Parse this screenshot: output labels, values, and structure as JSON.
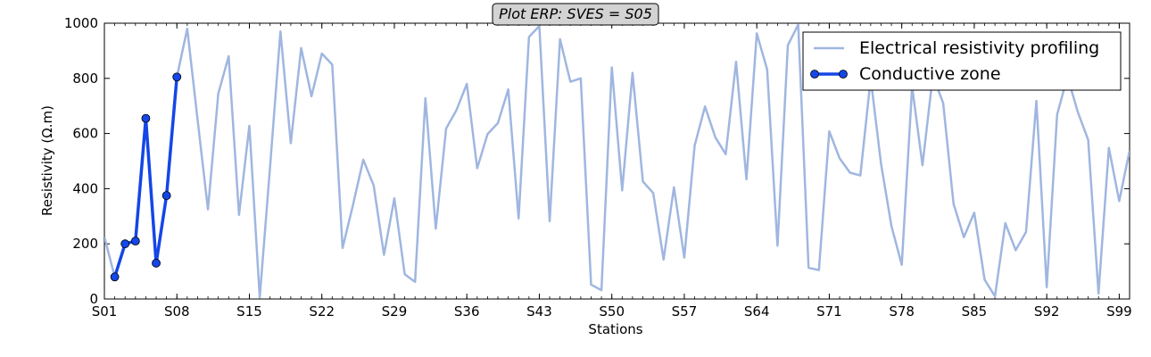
{
  "chart_data": {
    "type": "line",
    "title": "Plot ERP: SVES = S05",
    "xlabel": "Stations",
    "ylabel": "Resistivity (Ω.m)",
    "ylim": [
      0,
      1000
    ],
    "yticks": [
      0,
      200,
      400,
      600,
      800,
      1000
    ],
    "x_tick_labels": [
      "S01",
      "S08",
      "S15",
      "S22",
      "S29",
      "S36",
      "S43",
      "S50",
      "S57",
      "S64",
      "S71",
      "S78",
      "S85",
      "S92",
      "S99"
    ],
    "x_tick_stations": [
      1,
      8,
      15,
      22,
      29,
      36,
      43,
      50,
      57,
      64,
      71,
      78,
      85,
      92,
      99
    ],
    "grid": false,
    "legend_position": "top-right",
    "colors": {
      "erp": "#a0b6e0",
      "conductive": "#1446e8",
      "title_box": "#d3d3d3"
    },
    "series": [
      {
        "name": "Electrical resistivity profiling",
        "start_station": 1,
        "values": [
          225,
          80,
          200,
          210,
          655,
          130,
          375,
          805,
          980,
          650,
          325,
          745,
          880,
          305,
          628,
          5,
          480,
          970,
          565,
          910,
          735,
          890,
          850,
          185,
          340,
          505,
          412,
          160,
          365,
          90,
          62,
          728,
          255,
          618,
          685,
          780,
          474,
          598,
          638,
          760,
          292,
          950,
          990,
          282,
          942,
          788,
          800,
          52,
          32,
          840,
          394,
          820,
          426,
          384,
          143,
          405,
          150,
          557,
          698,
          586,
          525,
          860,
          434,
          963,
          832,
          193,
          920,
          995,
          113,
          105,
          608,
          510,
          458,
          448,
          800,
          490,
          265,
          124,
          770,
          485,
          810,
          710,
          345,
          224,
          313,
          70,
          10,
          275,
          177,
          243,
          718,
          43,
          668,
          807,
          678,
          577,
          20,
          548,
          355,
          538
        ]
      },
      {
        "name": "Conductive zone",
        "start_station": 2,
        "values": [
          80,
          200,
          210,
          655,
          130,
          375,
          805
        ]
      }
    ]
  }
}
